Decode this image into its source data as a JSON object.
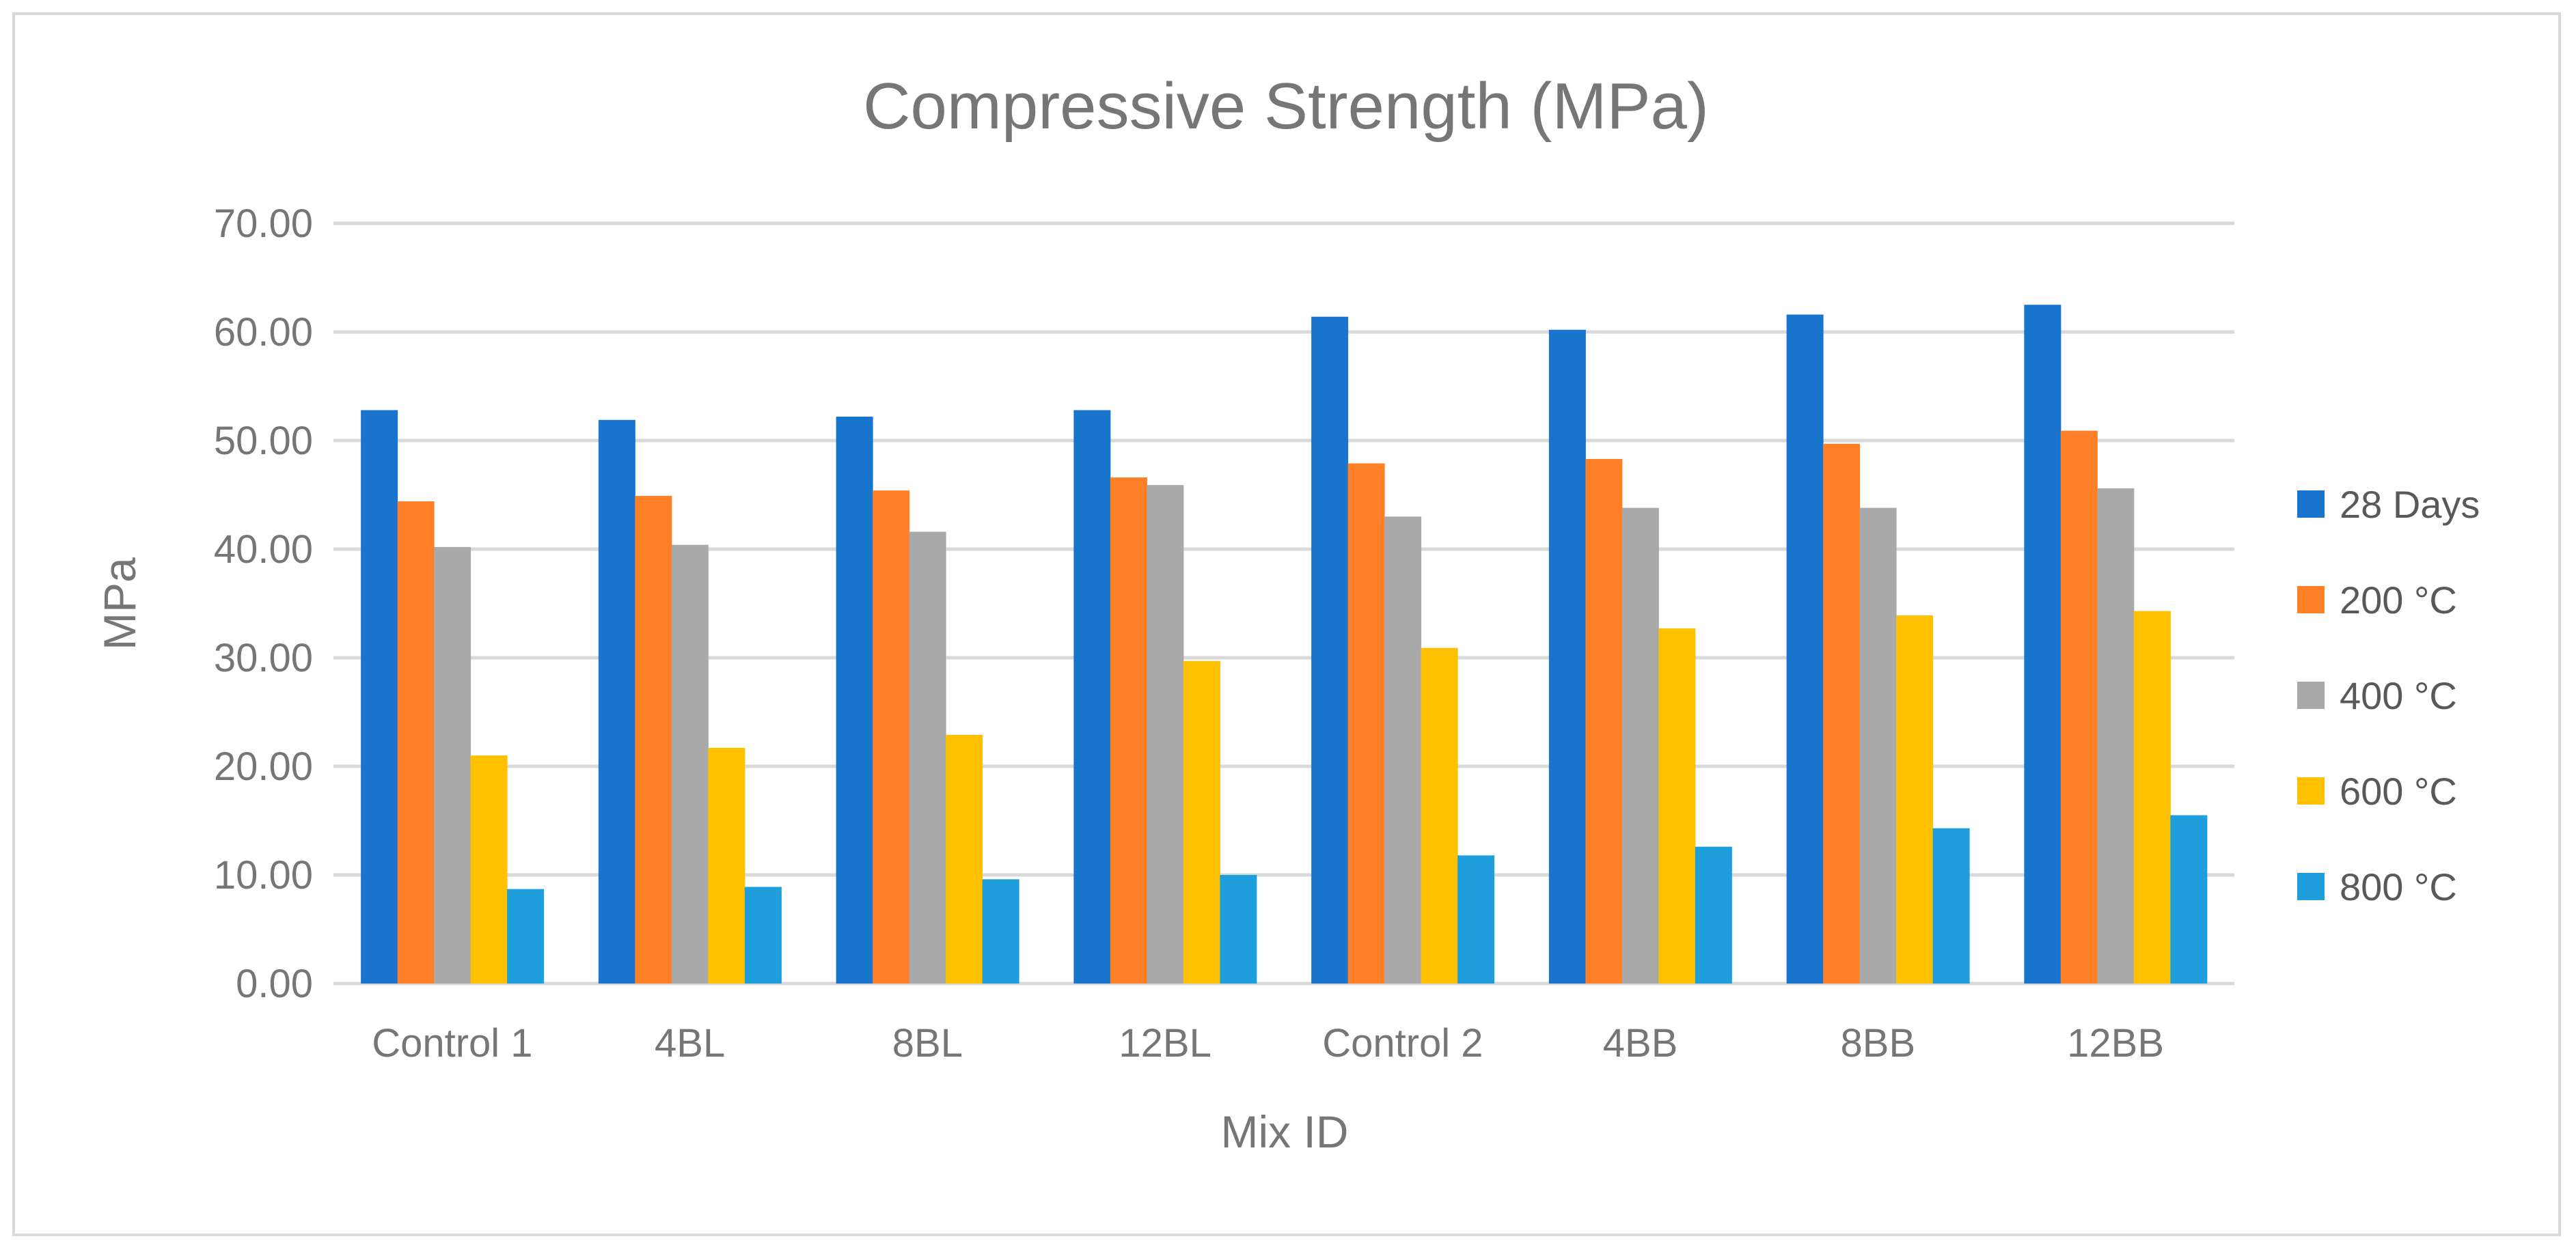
{
  "chart_data": {
    "type": "bar",
    "title": "Compressive Strength (MPa)",
    "xlabel": "Mix ID",
    "ylabel": "MPa",
    "ylim": [
      0,
      70
    ],
    "yticks": [
      "0.00",
      "10.00",
      "20.00",
      "30.00",
      "40.00",
      "50.00",
      "60.00",
      "70.00"
    ],
    "grid": true,
    "legend_position": "right",
    "categories": [
      "Control 1",
      "4BL",
      "8BL",
      "12BL",
      "Control 2",
      "4BB",
      "8BB",
      "12BB"
    ],
    "series": [
      {
        "name": "28 Days",
        "color": "#1874CD",
        "values": [
          52.8,
          51.9,
          52.2,
          52.8,
          61.4,
          60.2,
          61.6,
          62.5
        ]
      },
      {
        "name": "200 °C",
        "color": "#FF7F27",
        "values": [
          44.4,
          44.9,
          45.4,
          46.6,
          47.9,
          48.3,
          49.7,
          50.9
        ]
      },
      {
        "name": "400 °C",
        "color": "#A9A9A9",
        "values": [
          40.2,
          40.4,
          41.6,
          45.9,
          43.0,
          43.8,
          43.8,
          45.6
        ]
      },
      {
        "name": "600 °C",
        "color": "#FFC000",
        "values": [
          21.0,
          21.7,
          22.9,
          29.7,
          30.9,
          32.7,
          33.9,
          34.3
        ]
      },
      {
        "name": "800 °C",
        "color": "#1E9FDB",
        "values": [
          8.7,
          8.9,
          9.6,
          10.0,
          11.8,
          12.6,
          14.3,
          15.5
        ]
      }
    ]
  }
}
